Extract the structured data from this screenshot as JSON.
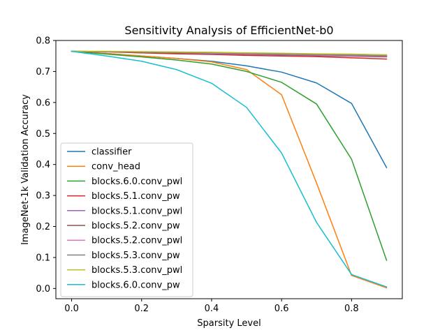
{
  "chart_data": {
    "type": "line",
    "title": "Sensitivity Analysis of EfficientNet-b0",
    "xlabel": "Sparsity Level",
    "ylabel": "ImageNet-1k Validation Accuracy",
    "xlim": [
      -0.045,
      0.945
    ],
    "ylim": [
      -0.033,
      0.8
    ],
    "x_ticks": [
      0.0,
      0.2,
      0.4,
      0.6,
      0.8
    ],
    "x_tick_labels": [
      "0.0",
      "0.2",
      "0.4",
      "0.6",
      "0.8"
    ],
    "y_ticks": [
      0.0,
      0.1,
      0.2,
      0.3,
      0.4,
      0.5,
      0.6,
      0.7,
      0.8
    ],
    "y_tick_labels": [
      "0.0",
      "0.1",
      "0.2",
      "0.3",
      "0.4",
      "0.5",
      "0.6",
      "0.7",
      "0.8"
    ],
    "grid": false,
    "legend_position": "lower-left",
    "x": [
      0.0,
      0.1,
      0.2,
      0.3,
      0.4,
      0.5,
      0.6,
      0.7,
      0.8,
      0.9
    ],
    "series": [
      {
        "name": "classifier",
        "color": "#1f77b4",
        "values": [
          0.765,
          0.758,
          0.75,
          0.742,
          0.733,
          0.718,
          0.698,
          0.663,
          0.597,
          0.39
        ]
      },
      {
        "name": "conv_head",
        "color": "#ff7f0e",
        "values": [
          0.765,
          0.758,
          0.75,
          0.742,
          0.731,
          0.706,
          0.625,
          0.34,
          0.042,
          0.002
        ]
      },
      {
        "name": "blocks.6.0.conv_pwl",
        "color": "#2ca02c",
        "values": [
          0.765,
          0.756,
          0.747,
          0.737,
          0.724,
          0.7,
          0.665,
          0.595,
          0.417,
          0.091
        ]
      },
      {
        "name": "blocks.5.1.conv_pw",
        "color": "#d62728",
        "values": [
          0.765,
          0.763,
          0.76,
          0.757,
          0.755,
          0.752,
          0.75,
          0.748,
          0.744,
          0.74
        ]
      },
      {
        "name": "blocks.5.1.conv_pwl",
        "color": "#9467bd",
        "values": [
          0.765,
          0.764,
          0.762,
          0.76,
          0.757,
          0.755,
          0.753,
          0.751,
          0.749,
          0.747
        ]
      },
      {
        "name": "blocks.5.2.conv_pw",
        "color": "#8c564b",
        "values": [
          0.765,
          0.764,
          0.762,
          0.76,
          0.758,
          0.756,
          0.754,
          0.752,
          0.75,
          0.748
        ]
      },
      {
        "name": "blocks.5.2.conv_pwl",
        "color": "#e377c2",
        "values": [
          0.765,
          0.764,
          0.763,
          0.761,
          0.759,
          0.757,
          0.755,
          0.753,
          0.751,
          0.75
        ]
      },
      {
        "name": "blocks.5.3.conv_pw",
        "color": "#7f7f7f",
        "values": [
          0.765,
          0.764,
          0.763,
          0.761,
          0.76,
          0.758,
          0.756,
          0.754,
          0.753,
          0.751
        ]
      },
      {
        "name": "blocks.5.3.conv_pwl",
        "color": "#bcbd22",
        "values": [
          0.765,
          0.765,
          0.764,
          0.763,
          0.762,
          0.76,
          0.759,
          0.757,
          0.756,
          0.754
        ]
      },
      {
        "name": "blocks.6.0.conv_pw",
        "color": "#17becf",
        "values": [
          0.765,
          0.75,
          0.733,
          0.706,
          0.662,
          0.584,
          0.437,
          0.213,
          0.045,
          0.005
        ]
      }
    ]
  }
}
